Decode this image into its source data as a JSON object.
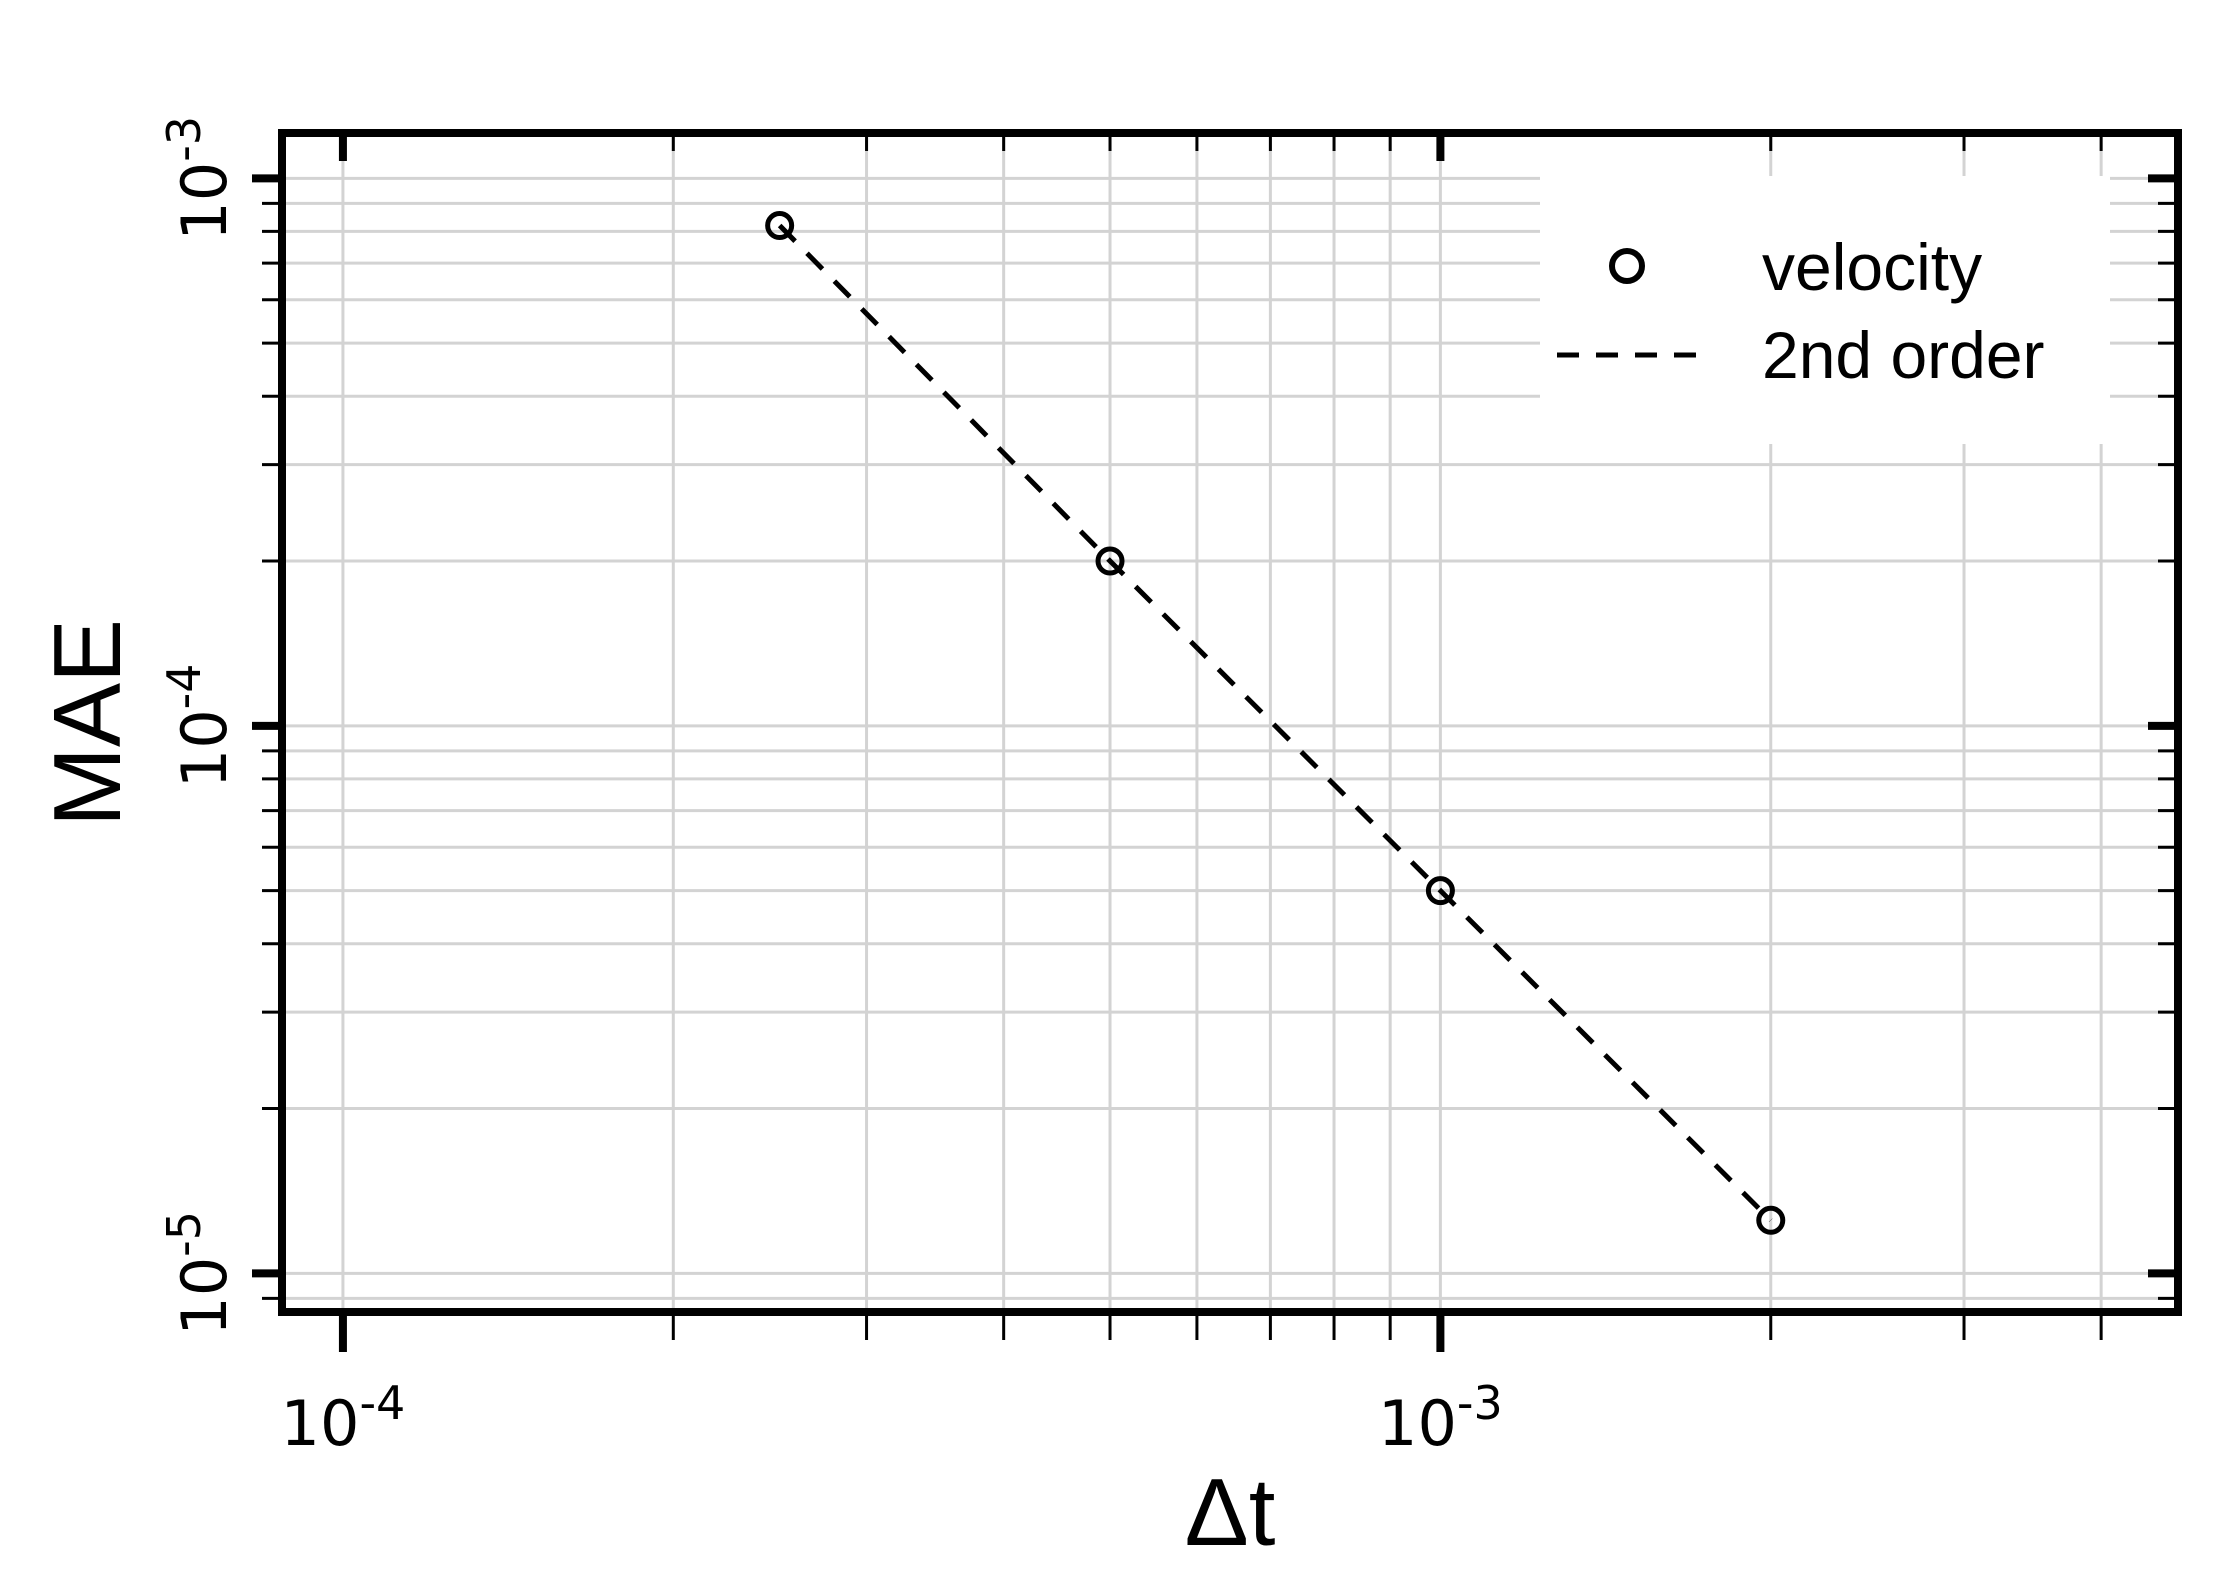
{
  "chart_data": {
    "type": "scatter",
    "xlabel": "Δt",
    "ylabel": "MAE",
    "x_scale": "log",
    "y_scale": "log",
    "xlim": [
      8.8e-05,
      0.0047
    ],
    "ylim": [
      8.5e-06,
      0.00121
    ],
    "grid": true,
    "x_ticks": [
      {
        "value": 0.0001,
        "mantissa": "10",
        "exponent": "-4"
      },
      {
        "value": 0.001,
        "mantissa": "10",
        "exponent": "-3"
      }
    ],
    "y_ticks": [
      {
        "value": 1e-05,
        "mantissa": "10",
        "exponent": "-5"
      },
      {
        "value": 0.0001,
        "mantissa": "10",
        "exponent": "-4"
      },
      {
        "value": 0.001,
        "mantissa": "10",
        "exponent": "-3"
      }
    ],
    "series": [
      {
        "name": "velocity",
        "kind": "points",
        "marker": "open-circle",
        "color": "#000000",
        "x": [
          0.00025,
          0.0005,
          0.001,
          0.002
        ],
        "y": [
          0.00082,
          0.0002,
          5e-05,
          1.25e-05
        ]
      },
      {
        "name": "2nd order",
        "kind": "line",
        "line_style": "dashed",
        "color": "#000000",
        "x": [
          0.00025,
          0.0005,
          0.001,
          0.002
        ],
        "y": [
          0.00082,
          0.0002,
          5e-05,
          1.25e-05
        ]
      }
    ],
    "legend": {
      "placement": "top-right",
      "entries": [
        {
          "label": "velocity",
          "symbol": "open-circle"
        },
        {
          "label": "2nd order",
          "symbol": "dashed-line"
        }
      ]
    },
    "colors": {
      "grid": "#d3d3d3",
      "axis": "#000000",
      "background": "#ffffff"
    }
  }
}
